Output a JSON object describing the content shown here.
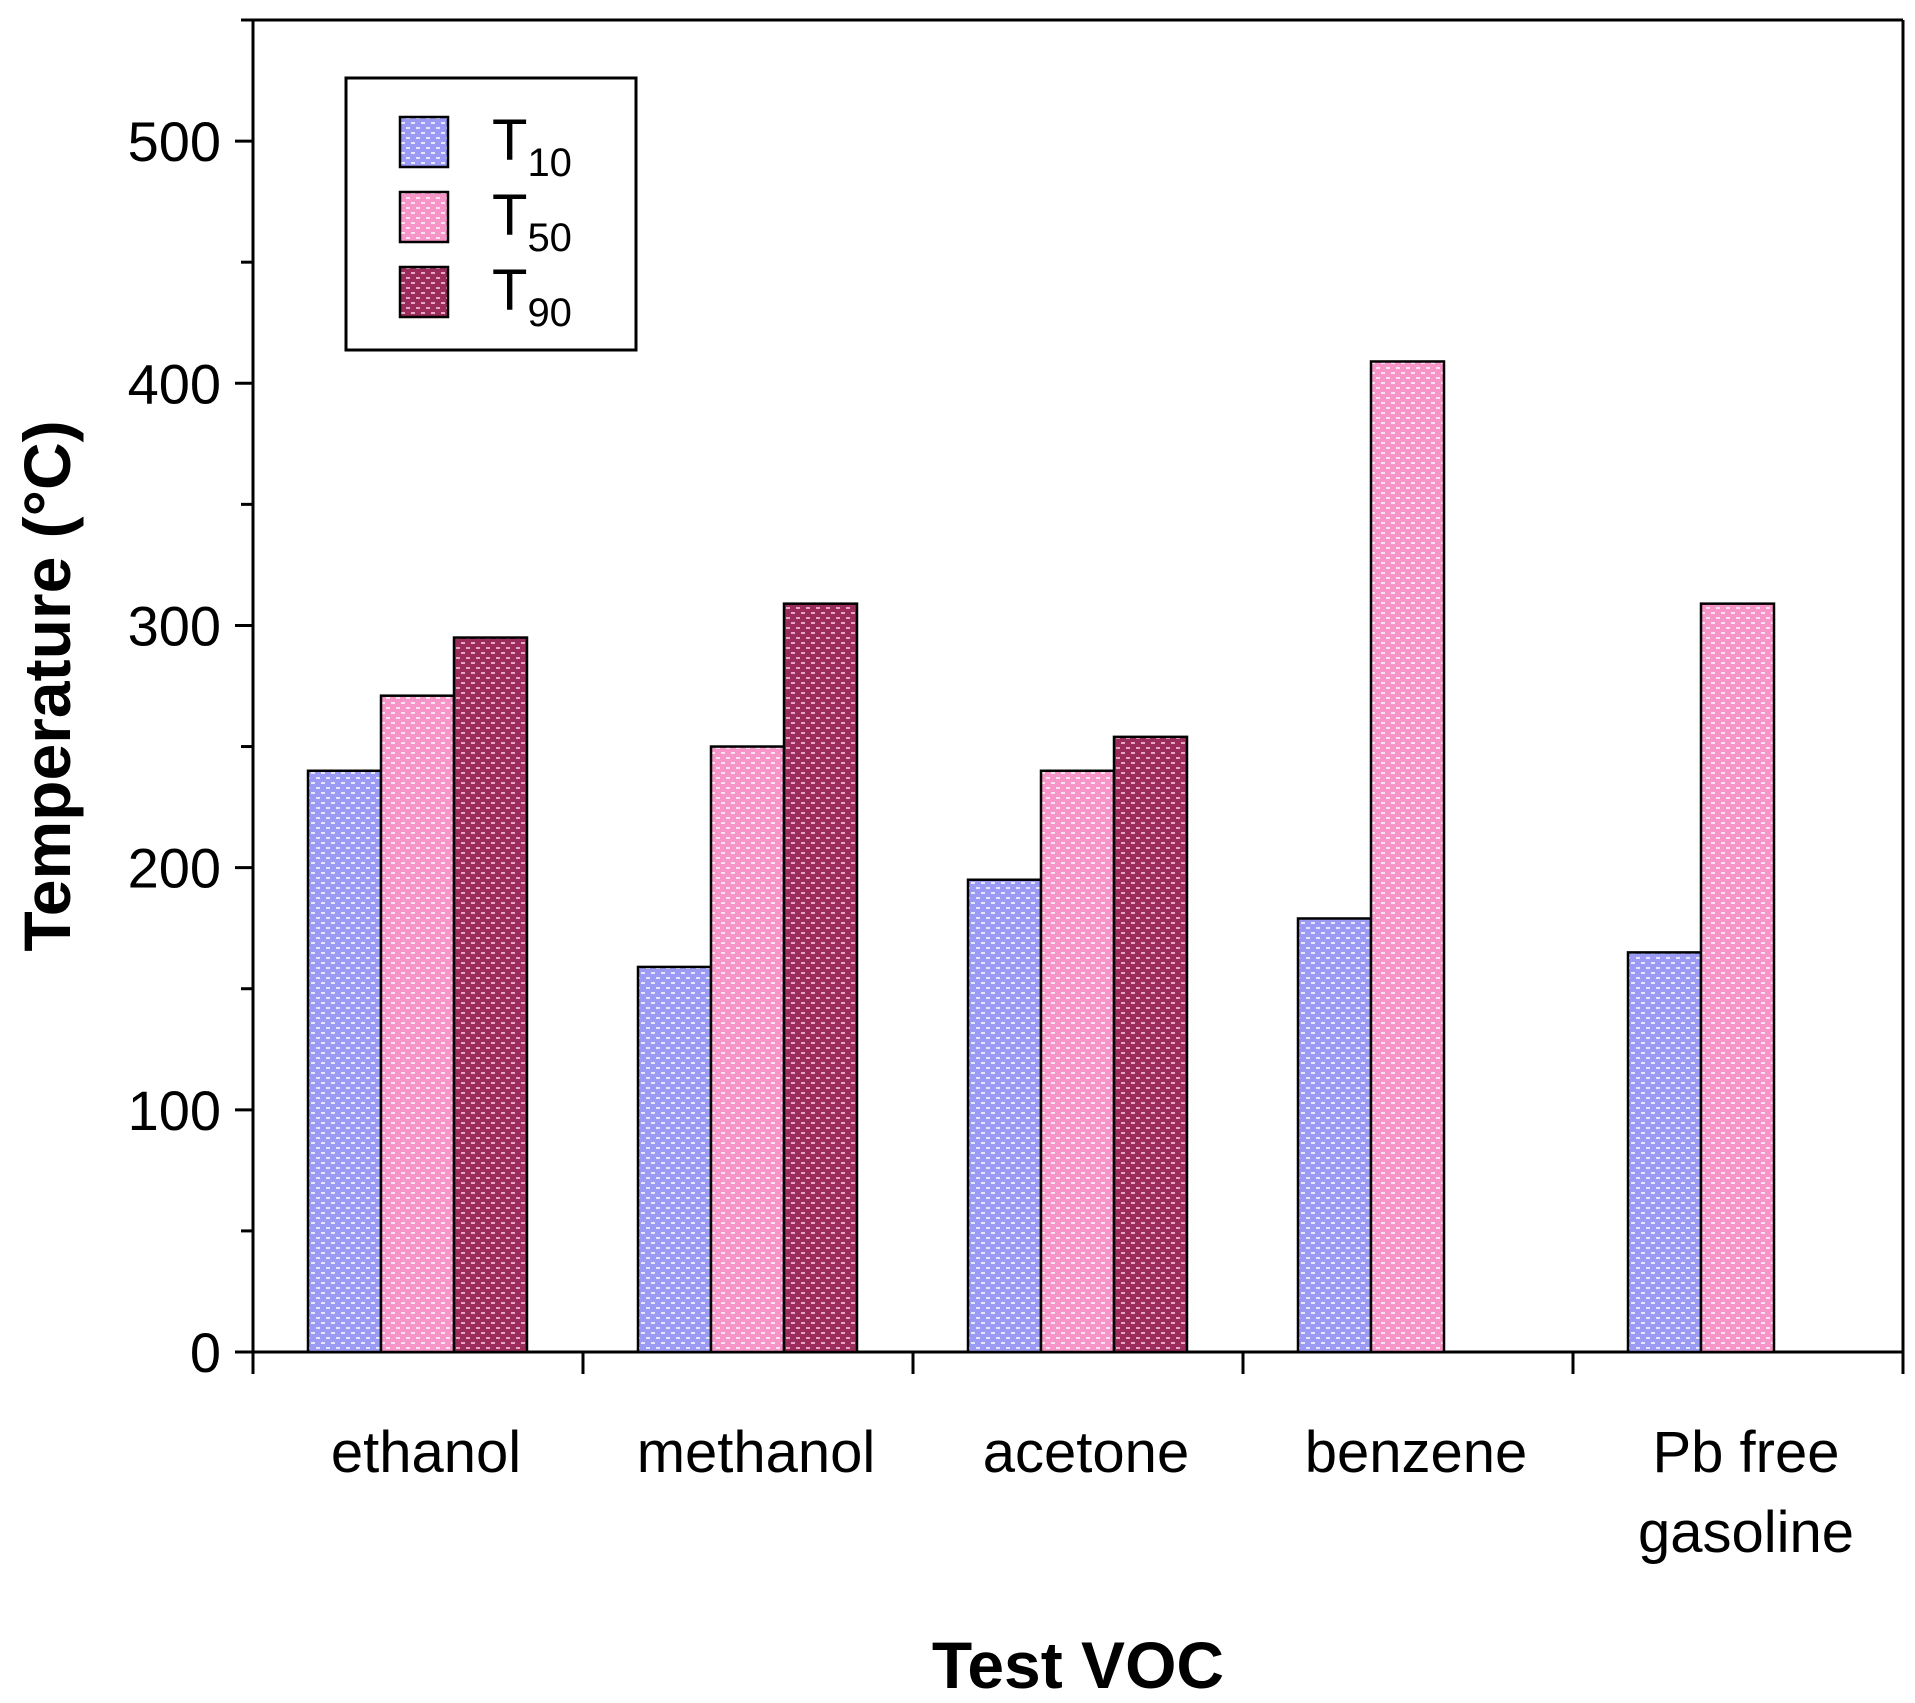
{
  "chart_data": {
    "type": "bar",
    "title": "",
    "xlabel": "Test VOC",
    "ylabel": "Temperature (°C)",
    "ylim": [
      0,
      550
    ],
    "yticks": [
      0,
      100,
      200,
      300,
      400,
      500
    ],
    "grid": false,
    "legend_position": "top-left",
    "categories": [
      [
        "ethanol"
      ],
      [
        "methanol"
      ],
      [
        "acetone"
      ],
      [
        "benzene"
      ],
      [
        "Pb free",
        "gasoline"
      ]
    ],
    "series": [
      {
        "name": "T",
        "subscript": "10",
        "color": "#9b9bf5",
        "values": [
          240,
          159,
          195,
          179,
          165
        ]
      },
      {
        "name": "T",
        "subscript": "50",
        "color": "#f794c8",
        "values": [
          271,
          250,
          240,
          409,
          309
        ]
      },
      {
        "name": "T",
        "subscript": "90",
        "color": "#9c2c5c",
        "values": [
          295,
          309,
          254,
          null,
          null
        ]
      }
    ]
  }
}
